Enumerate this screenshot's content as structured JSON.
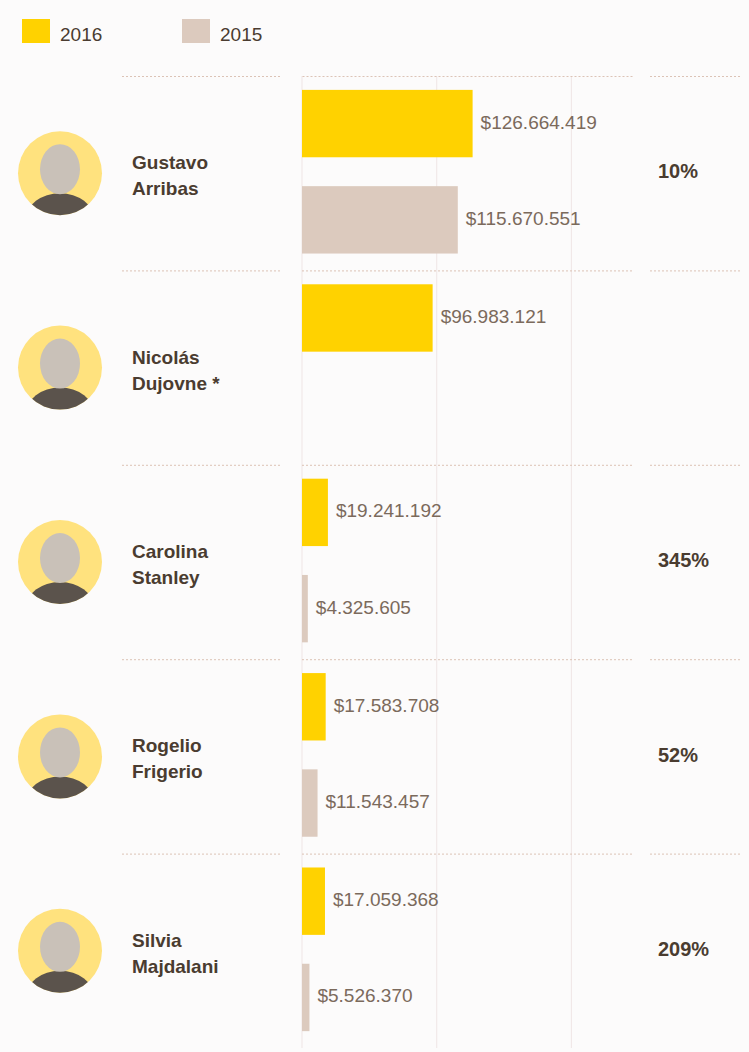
{
  "chart_data": {
    "type": "bar",
    "orientation": "horizontal",
    "categories": [
      "Gustavo Arribas",
      "Nicolás Dujovne *",
      "Carolina Stanley",
      "Rogelio Frigerio",
      "Silvia Majdalani"
    ],
    "series": [
      {
        "name": "2016",
        "color": "#ffd200",
        "values": [
          126664419,
          96983121,
          19241192,
          17583708,
          17059368
        ],
        "value_labels": [
          "$126.664.419",
          "$96.983.121",
          "$19.241.192",
          "$17.583.708",
          "$17.059.368"
        ]
      },
      {
        "name": "2015",
        "color": "#dccabe",
        "values": [
          115670551,
          null,
          4325605,
          11543457,
          5526370
        ],
        "value_labels": [
          "$115.670.551",
          null,
          "$4.325.605",
          "$11.543.457",
          "$5.526.370"
        ]
      }
    ],
    "change": {
      "values": [
        10,
        null,
        345,
        52,
        209
      ],
      "value_labels": [
        "10%",
        null,
        "345%",
        "52%",
        "209%"
      ]
    },
    "xlim": [
      0,
      245000000
    ],
    "xticks": [
      0,
      100000000,
      200000000
    ],
    "grid": true,
    "data_labels": true,
    "tick_labels": false,
    "legend": "top-left"
  }
}
